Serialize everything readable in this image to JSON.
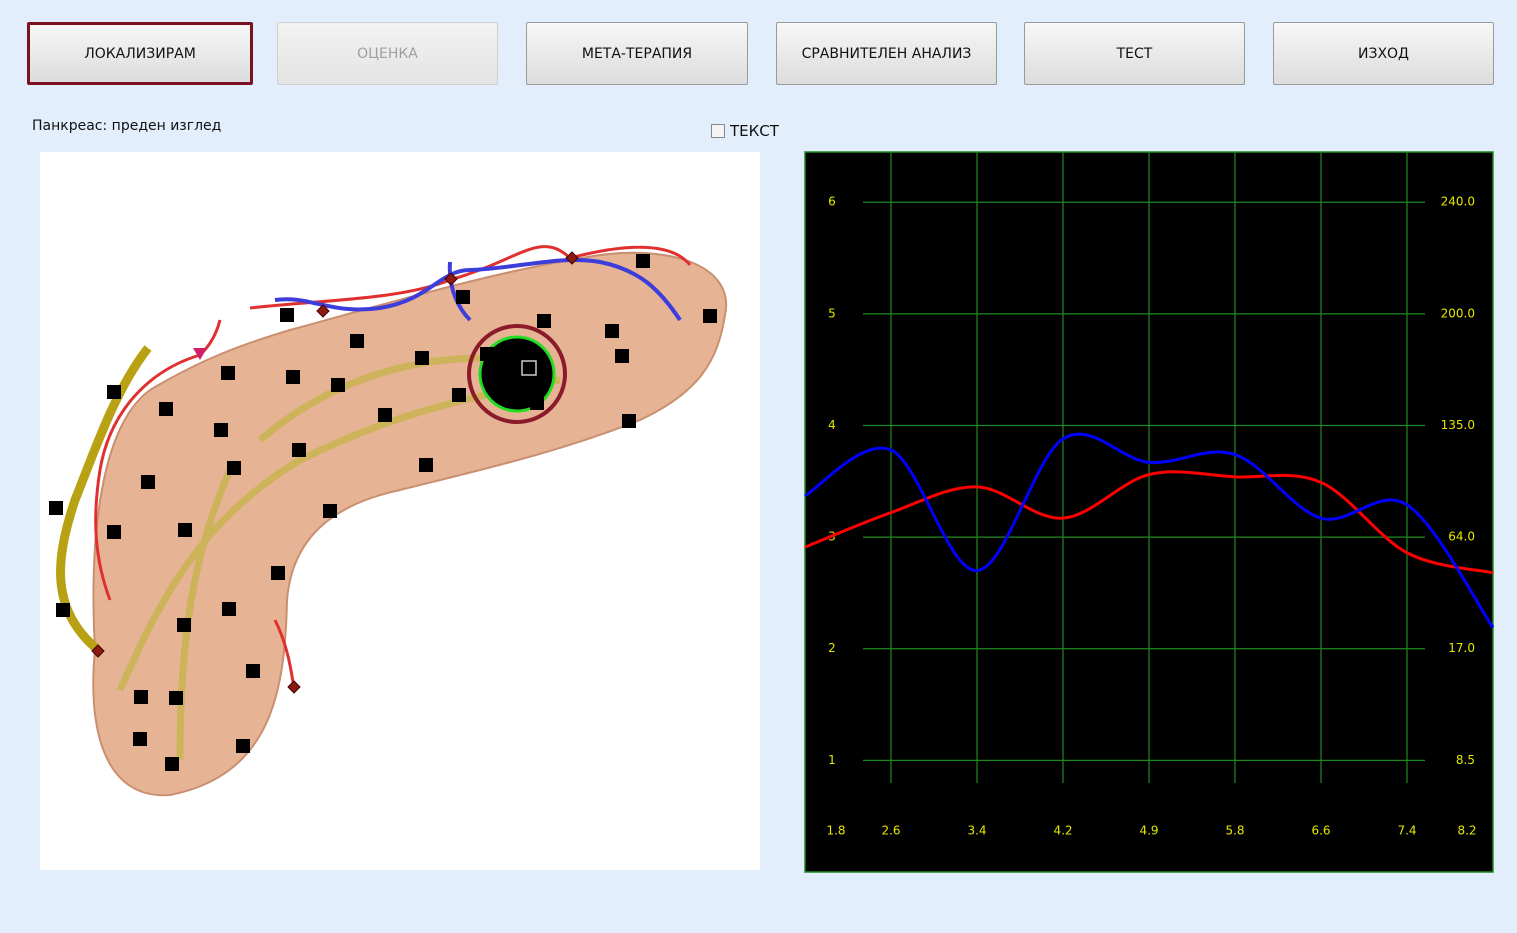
{
  "toolbar": {
    "buttons": [
      "ЛОКАЛИЗИРАМ",
      "ОЦЕНКА",
      "МЕТА-ТЕРАПИЯ",
      "СРАВНИТЕЛЕН АНАЛИЗ",
      "ТЕСТ",
      "ИЗХОД"
    ]
  },
  "view_label": "Панкреас: преден изглед",
  "text_checkbox": "ТЕКСТ",
  "chart_data": {
    "type": "line",
    "categories": [
      "1.8",
      "2.6",
      "3.4",
      "4.2",
      "4.9",
      "5.8",
      "6.6",
      "7.4",
      "8.2"
    ],
    "series": [
      {
        "color": "#ff0000",
        "values": [
          2.91,
          3.22,
          3.45,
          3.17,
          3.56,
          3.54,
          3.49,
          2.86,
          2.68
        ]
      },
      {
        "color": "#0000ff",
        "values": [
          3.37,
          3.78,
          2.7,
          3.88,
          3.67,
          3.74,
          3.17,
          3.29,
          2.19
        ]
      }
    ],
    "ylim": [
      0,
      6.45
    ],
    "yticks": [
      1,
      2,
      3,
      4,
      5,
      6
    ],
    "y2ticks": [
      {
        "value": 8.5,
        "label": "8.5"
      },
      {
        "value": 17,
        "label": "17.0"
      },
      {
        "value": 64,
        "label": "64.0"
      },
      {
        "value": 135,
        "label": "135.0"
      },
      {
        "value": 200,
        "label": "200.0"
      },
      {
        "value": 240,
        "label": "240.0"
      }
    ],
    "grid": true,
    "grid_color": "#1f8a1f",
    "background": "#000000",
    "tick_label_color": "#e6e600"
  }
}
